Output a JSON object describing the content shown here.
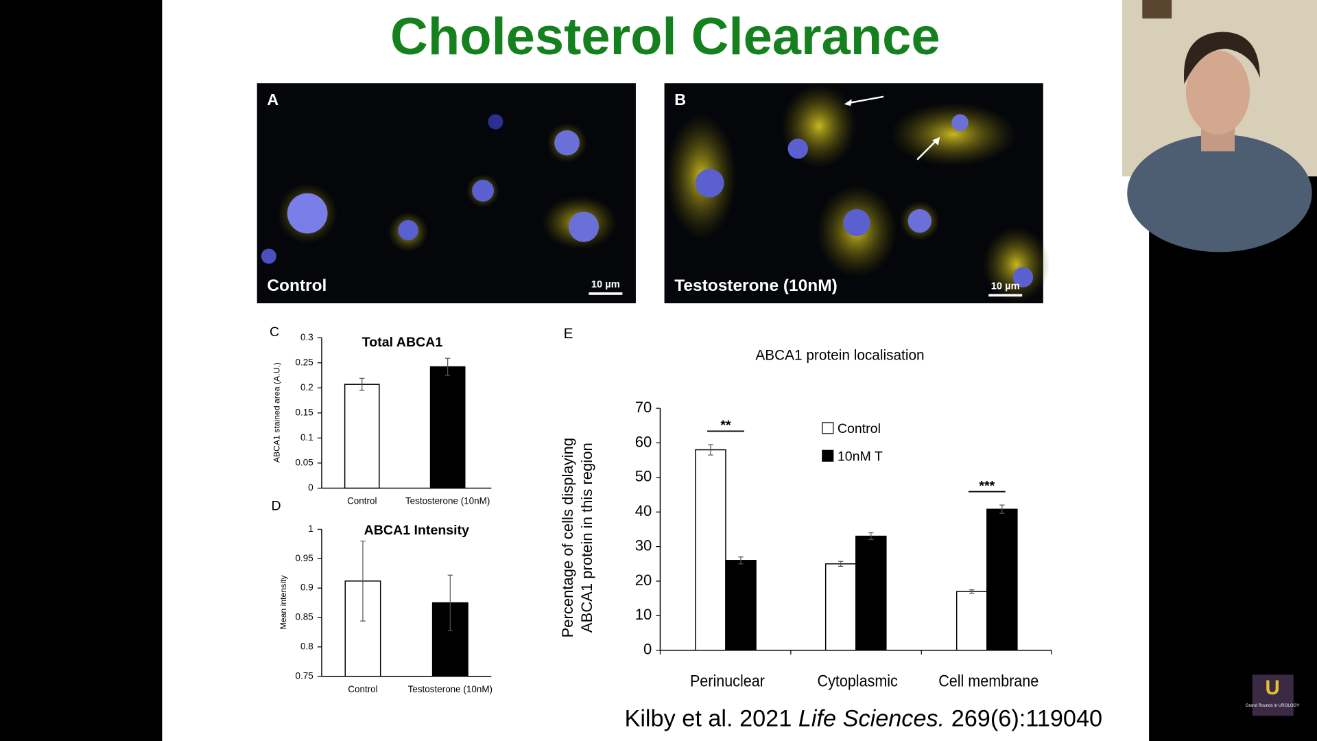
{
  "slide": {
    "title": "Cholesterol Clearance",
    "images": [
      {
        "label": "A",
        "caption": "Control",
        "scale_bar": "10 µm"
      },
      {
        "label": "B",
        "caption": "Testosterone (10nM)",
        "scale_bar": "10 µm"
      }
    ],
    "charts": [
      {
        "type": "bar",
        "panel": "C",
        "title": "Total ABCA1",
        "y_label": "ABCA1 stained area (A.U.)",
        "categories": [
          "Control",
          "Testosterone (10nM)"
        ],
        "values": [
          0.207,
          0.242
        ],
        "errors": [
          0.012,
          0.017
        ],
        "colors": [
          "#ffffff",
          "#000000"
        ],
        "ylim": [
          0,
          0.3
        ],
        "yticks": [
          0,
          0.05,
          0.1,
          0.15,
          0.2,
          0.25,
          0.3
        ]
      },
      {
        "type": "bar",
        "panel": "D",
        "title": "ABCA1 Intensity",
        "y_label": "Mean intensity",
        "categories": [
          "Control",
          "Testosterone (10nM)"
        ],
        "values": [
          0.912,
          0.875
        ],
        "errors": [
          0.068,
          0.047
        ],
        "colors": [
          "#ffffff",
          "#000000"
        ],
        "ylim": [
          0.75,
          1
        ],
        "yticks": [
          0.75,
          0.8,
          0.85,
          0.9,
          0.95,
          1
        ]
      },
      {
        "type": "grouped_bar",
        "panel": "E",
        "title": "ABCA1 protein localisation",
        "y_label": [
          "Percentage of cells displaying",
          "ABCA1 protein in this region"
        ],
        "categories": [
          "Perinuclear",
          "Cytoplasmic",
          "Cell membrane"
        ],
        "series": [
          {
            "name": "Control",
            "color": "#ffffff",
            "values": [
              58,
              25,
              17
            ],
            "errors": [
              1.5,
              0.7,
              0.5
            ]
          },
          {
            "name": "10nM T",
            "color": "#000000",
            "values": [
              26,
              33,
              40.8
            ],
            "errors": [
              1,
              1,
              1.2
            ]
          }
        ],
        "significance": [
          "**",
          null,
          "***"
        ],
        "ylim": [
          0,
          70
        ],
        "yticks": [
          0,
          10,
          20,
          30,
          40,
          50,
          60,
          70
        ]
      }
    ],
    "citation": {
      "authors": "Kilby et al. 2021",
      "journal": "Life Sciences.",
      "reference": "269(6):119040"
    },
    "logo": {
      "letter": "U",
      "text": "Grand Rounds in UROLOGY"
    }
  }
}
